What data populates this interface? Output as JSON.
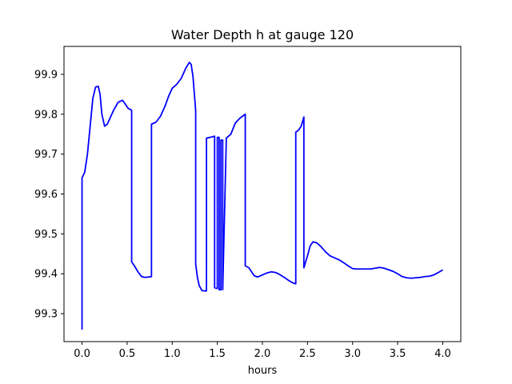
{
  "chart_data": {
    "type": "line",
    "title": "Water Depth h at gauge 120",
    "xlabel": "hours",
    "ylabel": "",
    "xlim": [
      -0.2,
      4.2
    ],
    "ylim": [
      99.23,
      99.97
    ],
    "xticks": [
      0.0,
      0.5,
      1.0,
      1.5,
      2.0,
      2.5,
      3.0,
      3.5,
      4.0
    ],
    "xtick_labels": [
      "0.0",
      "0.5",
      "1.0",
      "1.5",
      "2.0",
      "2.5",
      "3.0",
      "3.5",
      "4.0"
    ],
    "yticks": [
      99.3,
      99.4,
      99.5,
      99.6,
      99.7,
      99.8,
      99.9
    ],
    "ytick_labels": [
      "99.3",
      "99.4",
      "99.5",
      "99.6",
      "99.7",
      "99.8",
      "99.9"
    ],
    "grid": false,
    "legend": "none",
    "series": [
      {
        "color": "#0000ff",
        "x": [
          0.0,
          0.0,
          0.03,
          0.06,
          0.09,
          0.12,
          0.15,
          0.18,
          0.2,
          0.22,
          0.25,
          0.28,
          0.31,
          0.35,
          0.4,
          0.45,
          0.48,
          0.51,
          0.55,
          0.55,
          0.58,
          0.62,
          0.66,
          0.7,
          0.77,
          0.77,
          0.82,
          0.87,
          0.92,
          0.96,
          1.0,
          1.05,
          1.1,
          1.15,
          1.19,
          1.21,
          1.23,
          1.26,
          1.26,
          1.28,
          1.3,
          1.33,
          1.36,
          1.38,
          1.38,
          1.42,
          1.47,
          1.47,
          1.5,
          1.5,
          1.52,
          1.52,
          1.54,
          1.54,
          1.56,
          1.56,
          1.6,
          1.65,
          1.7,
          1.75,
          1.81,
          1.81,
          1.85,
          1.88,
          1.91,
          1.95,
          2.0,
          2.05,
          2.1,
          2.15,
          2.2,
          2.25,
          2.3,
          2.34,
          2.37,
          2.37,
          2.4,
          2.43,
          2.46,
          2.46,
          2.5,
          2.53,
          2.56,
          2.6,
          2.65,
          2.7,
          2.75,
          2.8,
          2.85,
          2.9,
          2.95,
          3.0,
          3.05,
          3.1,
          3.15,
          3.2,
          3.25,
          3.3,
          3.35,
          3.4,
          3.45,
          3.5,
          3.55,
          3.6,
          3.65,
          3.7,
          3.75,
          3.8,
          3.85,
          3.9,
          3.95,
          4.0
        ],
        "y": [
          99.26,
          99.64,
          99.655,
          99.7,
          99.77,
          99.84,
          99.868,
          99.87,
          99.85,
          99.8,
          99.77,
          99.775,
          99.79,
          99.81,
          99.83,
          99.835,
          99.825,
          99.815,
          99.81,
          99.43,
          99.42,
          99.405,
          99.393,
          99.391,
          99.393,
          99.775,
          99.78,
          99.795,
          99.82,
          99.845,
          99.865,
          99.875,
          99.89,
          99.915,
          99.93,
          99.925,
          99.895,
          99.81,
          99.425,
          99.39,
          99.37,
          99.358,
          99.357,
          99.357,
          99.74,
          99.742,
          99.745,
          99.365,
          99.363,
          99.742,
          99.742,
          99.36,
          99.36,
          99.735,
          99.735,
          99.36,
          99.74,
          99.75,
          99.778,
          99.79,
          99.8,
          99.42,
          99.415,
          99.405,
          99.395,
          99.392,
          99.397,
          99.402,
          99.405,
          99.403,
          99.397,
          99.39,
          99.382,
          99.377,
          99.375,
          99.755,
          99.76,
          99.77,
          99.793,
          99.415,
          99.445,
          99.47,
          99.48,
          99.478,
          99.468,
          99.455,
          99.445,
          99.44,
          99.435,
          99.428,
          99.42,
          99.413,
          99.412,
          99.412,
          99.412,
          99.412,
          99.414,
          99.416,
          99.414,
          99.41,
          99.406,
          99.4,
          99.393,
          99.39,
          99.389,
          99.39,
          99.391,
          99.393,
          99.394,
          99.397,
          99.403,
          99.41
        ]
      }
    ]
  }
}
